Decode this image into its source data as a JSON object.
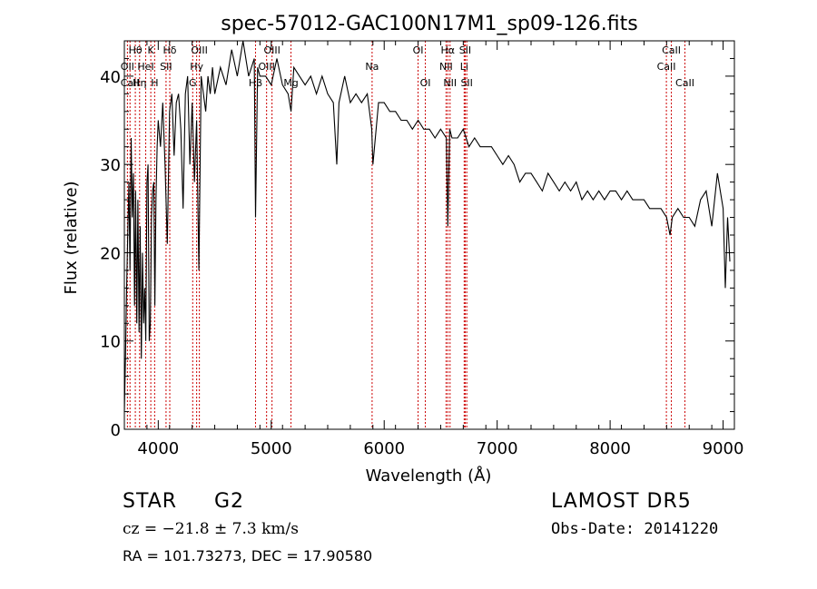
{
  "chart_data": {
    "type": "line",
    "title": "spec-57012-GAC100N17M1_sp09-126.fits",
    "xlabel": "Wavelength (Å)",
    "ylabel": "Flux (relative)",
    "xlim": [
      3700,
      9100
    ],
    "ylim": [
      0,
      44
    ],
    "x_ticks": [
      4000,
      5000,
      6000,
      7000,
      8000,
      9000
    ],
    "y_ticks": [
      0,
      10,
      20,
      30,
      40
    ],
    "grid": false,
    "line_color": "#000000",
    "marker_color": "#cc0000",
    "series": [
      {
        "x": [
          3700,
          3710,
          3720,
          3730,
          3740,
          3750,
          3760,
          3770,
          3780,
          3790,
          3800,
          3810,
          3820,
          3830,
          3840,
          3850,
          3860,
          3870,
          3880,
          3890,
          3900,
          3910,
          3920,
          3930,
          3940,
          3950,
          3960,
          3970,
          3980,
          3990,
          4000,
          4020,
          4040,
          4060,
          4080,
          4100,
          4120,
          4140,
          4160,
          4180,
          4200,
          4220,
          4240,
          4260,
          4280,
          4300,
          4320,
          4340,
          4360,
          4380,
          4400,
          4420,
          4440,
          4460,
          4480,
          4500,
          4550,
          4600,
          4650,
          4700,
          4750,
          4800,
          4850,
          4861,
          4880,
          4900,
          4950,
          5000,
          5050,
          5100,
          5150,
          5175,
          5200,
          5250,
          5300,
          5350,
          5400,
          5450,
          5500,
          5550,
          5580,
          5600,
          5650,
          5700,
          5750,
          5800,
          5850,
          5890,
          5900,
          5950,
          6000,
          6050,
          6100,
          6150,
          6200,
          6250,
          6300,
          6350,
          6400,
          6450,
          6500,
          6550,
          6563,
          6580,
          6600,
          6650,
          6700,
          6750,
          6800,
          6850,
          6900,
          6950,
          7000,
          7050,
          7100,
          7150,
          7200,
          7250,
          7300,
          7350,
          7400,
          7450,
          7500,
          7550,
          7600,
          7650,
          7700,
          7750,
          7800,
          7850,
          7900,
          7950,
          8000,
          8050,
          8100,
          8150,
          8200,
          8250,
          8300,
          8350,
          8400,
          8450,
          8500,
          8530,
          8550,
          8600,
          8650,
          8700,
          8750,
          8800,
          8850,
          8900,
          8950,
          9000,
          9020,
          9040,
          9060
        ],
        "y": [
          2,
          8,
          16,
          22,
          28,
          18,
          33,
          24,
          29,
          14,
          27,
          12,
          26,
          11,
          23,
          8,
          20,
          12,
          16,
          10,
          28,
          30,
          10,
          12,
          24,
          27,
          28,
          14,
          26,
          32,
          35,
          32,
          37,
          30,
          21,
          36,
          38,
          31,
          37,
          38,
          34,
          25,
          38,
          40,
          30,
          37,
          28,
          35,
          18,
          40,
          38,
          36,
          40,
          38,
          41,
          38,
          41,
          39,
          43,
          40,
          44,
          40,
          42,
          24,
          41,
          40,
          40,
          39,
          42,
          39,
          38,
          36,
          41,
          40,
          39,
          40,
          38,
          40,
          38,
          37,
          30,
          37,
          40,
          37,
          38,
          37,
          38,
          34,
          30,
          37,
          37,
          36,
          36,
          35,
          35,
          34,
          35,
          34,
          34,
          33,
          34,
          33,
          23,
          34,
          33,
          33,
          34,
          32,
          33,
          32,
          32,
          32,
          31,
          30,
          31,
          30,
          28,
          29,
          29,
          28,
          27,
          29,
          28,
          27,
          28,
          27,
          28,
          26,
          27,
          26,
          27,
          26,
          27,
          27,
          26,
          27,
          26,
          26,
          26,
          25,
          25,
          25,
          24,
          22,
          24,
          25,
          24,
          24,
          23,
          26,
          27,
          23,
          29,
          25,
          16,
          24,
          19
        ]
      }
    ],
    "lines": [
      {
        "label": "Hθ",
        "x": 3797,
        "row": 0
      },
      {
        "label": "OII",
        "x": 3727,
        "row": 1
      },
      {
        "label": "Hη",
        "x": 3835,
        "row": 2
      },
      {
        "label": "CaII",
        "x": 3750,
        "row": 2
      },
      {
        "label": "HeI",
        "x": 3889,
        "row": 1
      },
      {
        "label": "K",
        "x": 3934,
        "row": 0
      },
      {
        "label": "H",
        "x": 3968,
        "row": 2
      },
      {
        "label": "SII",
        "x": 4069,
        "row": 1
      },
      {
        "label": "Hδ",
        "x": 4102,
        "row": 0
      },
      {
        "label": "OIII",
        "x": 4364,
        "row": 0
      },
      {
        "label": "Hγ",
        "x": 4340,
        "row": 1
      },
      {
        "label": "G",
        "x": 4305,
        "row": 2
      },
      {
        "label": "Hβ",
        "x": 4861,
        "row": 2
      },
      {
        "label": "OIII",
        "x": 5007,
        "row": 0
      },
      {
        "label": "OIII",
        "x": 4959,
        "row": 1
      },
      {
        "label": "Mg",
        "x": 5175,
        "row": 2
      },
      {
        "label": "Na",
        "x": 5893,
        "row": 1
      },
      {
        "label": "OI",
        "x": 6300,
        "row": 0
      },
      {
        "label": "OI",
        "x": 6364,
        "row": 2
      },
      {
        "label": "Hα",
        "x": 6563,
        "row": 0
      },
      {
        "label": "NII",
        "x": 6548,
        "row": 1
      },
      {
        "label": "NII",
        "x": 6583,
        "row": 2
      },
      {
        "label": "SII",
        "x": 6717,
        "row": 0
      },
      {
        "label": "Li",
        "x": 6708,
        "row": 1
      },
      {
        "label": "SII",
        "x": 6731,
        "row": 2
      },
      {
        "label": "CaII",
        "x": 8542,
        "row": 0
      },
      {
        "label": "CaII",
        "x": 8498,
        "row": 1
      },
      {
        "label": "CaII",
        "x": 8662,
        "row": 2
      }
    ]
  },
  "info": {
    "object_class": "STAR",
    "subclass": "G2",
    "survey": "LAMOST  DR5",
    "redshift": "cz = −21.8 ± 7.3 km/s",
    "obs_date": "Obs-Date: 20141220",
    "coords": "RA = 101.73273, DEC =  17.90580"
  }
}
